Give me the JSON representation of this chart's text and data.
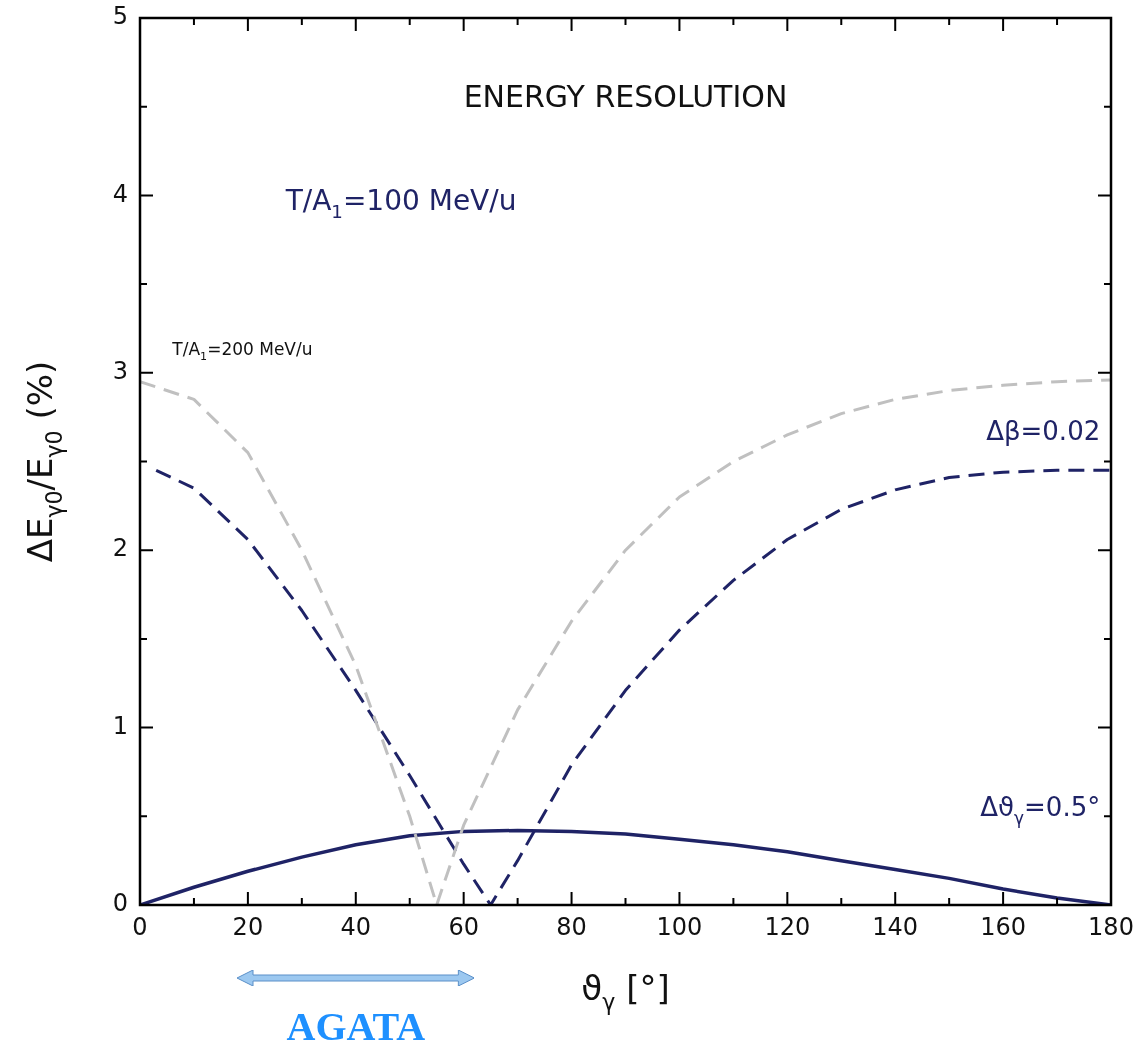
{
  "chart_data": {
    "type": "line",
    "title": "ENERGY RESOLUTION",
    "xlabel": "ϑ$_{γ}$ [°]",
    "ylabel": "ΔE$_{γ0}$/E$_{γ0}$ (%)",
    "annotations": [
      "T/A$_{1}$=100 MeV/u",
      "AGATA"
    ],
    "xlim": [
      0,
      180
    ],
    "ylim": [
      0,
      5
    ],
    "xticks": [
      0,
      {
        "value": 10,
        "label": null
      },
      20,
      {
        "value": 30,
        "label": null
      },
      40,
      {
        "value": 50,
        "label": null
      },
      60,
      {
        "value": 70,
        "label": null
      },
      80,
      {
        "value": 90,
        "label": null
      },
      100,
      {
        "value": 110,
        "label": null
      },
      120,
      {
        "value": 130,
        "label": null
      },
      140,
      {
        "value": 150,
        "label": null
      },
      160,
      {
        "value": 170,
        "label": null
      },
      180
    ],
    "yticks": [
      0,
      {
        "value": 0.5,
        "label": null
      },
      1,
      {
        "value": 1.5,
        "label": null
      },
      2,
      {
        "value": 2.5,
        "label": null
      },
      3,
      {
        "value": 3.5,
        "label": null
      },
      4,
      {
        "value": 4.5,
        "label": null
      },
      5
    ],
    "marker": "none",
    "series": [
      {
        "name": "T/A$_{1}$=200 MeV/u",
        "color": "#c0c0c0",
        "line_style": "dashed",
        "x": [
          0,
          10,
          20,
          30,
          40,
          50,
          55,
          60,
          70,
          80,
          90,
          100,
          110,
          120,
          130,
          140,
          150,
          160,
          170,
          180
        ],
        "values": [
          2.95,
          2.85,
          2.55,
          2.0,
          1.35,
          0.5,
          0,
          0.45,
          1.1,
          1.6,
          2.0,
          2.3,
          2.5,
          2.65,
          2.77,
          2.85,
          2.9,
          2.93,
          2.95,
          2.96
        ]
      },
      {
        "name": "Δβ=0.02",
        "color": "#1f2366",
        "line_style": "dashed",
        "x": [
          3,
          10,
          20,
          30,
          40,
          50,
          60,
          65,
          70,
          80,
          90,
          100,
          110,
          120,
          130,
          140,
          150,
          160,
          170,
          180
        ],
        "values": [
          2.45,
          2.35,
          2.06,
          1.66,
          1.21,
          0.73,
          0.23,
          0,
          0.25,
          0.79,
          1.21,
          1.55,
          1.83,
          2.06,
          2.23,
          2.34,
          2.41,
          2.44,
          2.45,
          2.45
        ]
      },
      {
        "name": "Δϑ$_{γ}$=0.5°",
        "color": "#1f2366",
        "line_style": "solid",
        "x": [
          0,
          10,
          20,
          30,
          40,
          50,
          60,
          70,
          80,
          90,
          100,
          110,
          120,
          130,
          140,
          150,
          160,
          170,
          180
        ],
        "values": [
          0,
          0.1,
          0.19,
          0.27,
          0.34,
          0.39,
          0.415,
          0.42,
          0.415,
          0.4,
          0.37,
          0.34,
          0.3,
          0.25,
          0.2,
          0.15,
          0.09,
          0.04,
          0
        ]
      }
    ]
  }
}
